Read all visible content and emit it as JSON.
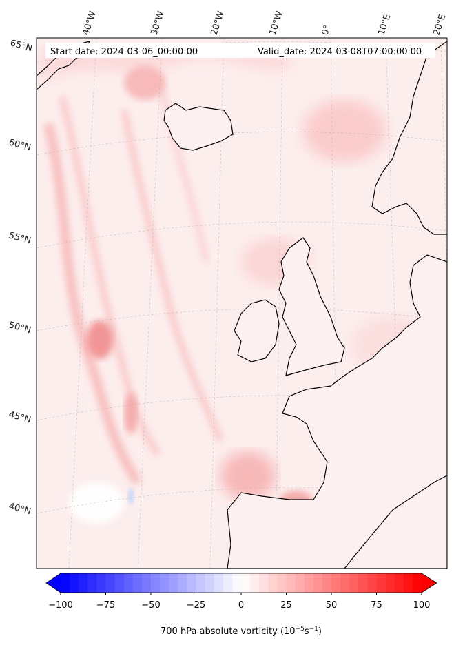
{
  "header": {
    "start_date": "Start date: 2024-03-06_00:00:00",
    "valid_date": "Valid_date: 2024-03-08T07:00:00.00"
  },
  "map": {
    "lon_labels": [
      "40°W",
      "30°W",
      "20°W",
      "10°W",
      "0°",
      "10°E",
      "20°E"
    ],
    "lat_labels": [
      "65°N",
      "60°N",
      "55°N",
      "50°N",
      "45°N",
      "40°N"
    ],
    "gridlines": true,
    "colors": {
      "coast": "#000000",
      "background": "#fdeeee"
    }
  },
  "colorbar": {
    "label_main": "700 hPa absolute vorticity (10",
    "label_exp1": "−5",
    "label_mid": "s",
    "label_exp2": "−1",
    "label_end": ")",
    "ticks": [
      "−100",
      "−75",
      "−50",
      "−25",
      "0",
      "25",
      "50",
      "75",
      "100"
    ],
    "range": [
      -100,
      100
    ],
    "colormap": "bwr",
    "extend": "both",
    "colors": {
      "low": "#0000ff",
      "mid": "#ffffff",
      "high": "#ff0000"
    }
  }
}
